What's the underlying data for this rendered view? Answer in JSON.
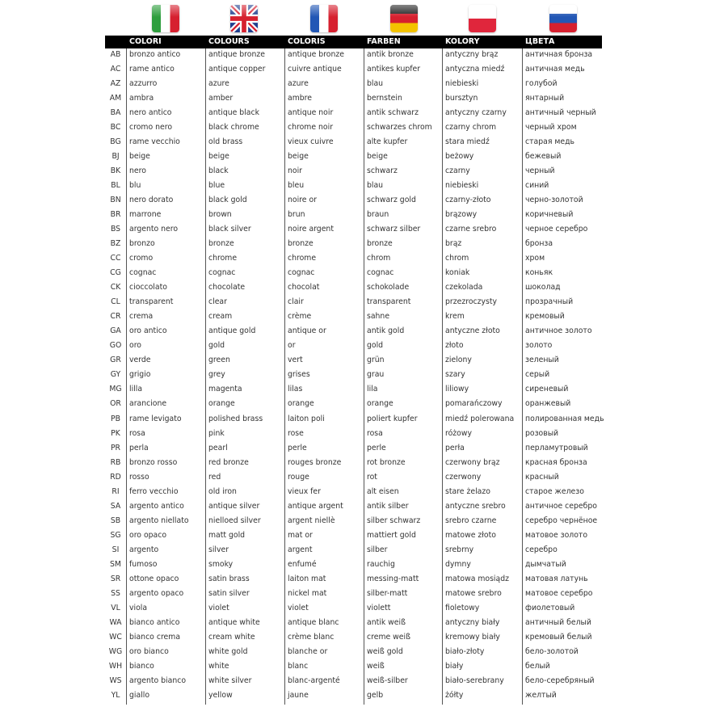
{
  "flags": [
    {
      "name": "italy-flag-icon",
      "colors": [
        "#2e9e3e",
        "#ffffff",
        "#d6202f"
      ]
    },
    {
      "name": "uk-flag-icon",
      "colors": [
        "#1f3f8f",
        "#ffffff",
        "#d6202f"
      ]
    },
    {
      "name": "france-flag-icon",
      "colors": [
        "#2257b5",
        "#ffffff",
        "#d6202f"
      ]
    },
    {
      "name": "germany-flag-icon",
      "colors": [
        "#222222",
        "#d6202f",
        "#f3c300"
      ]
    },
    {
      "name": "poland-flag-icon",
      "colors": [
        "#ffffff",
        "#e0263c"
      ]
    },
    {
      "name": "russia-flag-icon",
      "colors": [
        "#ffffff",
        "#2257b5",
        "#d6202f"
      ]
    }
  ],
  "headers": [
    "COLORI",
    "COLOURS",
    "COLORIS",
    "FARBEN",
    "KOLORY",
    "ЦВЕТА"
  ],
  "rows": [
    [
      "AB",
      "bronzo antico",
      "antique bronze",
      "antique bronze",
      "antik bronze",
      "antyczny brąz",
      "античная бронза"
    ],
    [
      "AC",
      "rame antico",
      "antique copper",
      "cuivre antique",
      "antikes kupfer",
      "antyczna miedź",
      "античная медь"
    ],
    [
      "AZ",
      "azzurro",
      "azure",
      "azure",
      "blau",
      "niebieski",
      "голубой"
    ],
    [
      "AM",
      "ambra",
      "amber",
      "ambre",
      "bernstein",
      "bursztyn",
      "янтарный"
    ],
    [
      "BA",
      "nero antico",
      "antique black",
      "antique noir",
      "antik schwarz",
      "antyczny czarny",
      "античный черный"
    ],
    [
      "BC",
      "cromo nero",
      "black chrome",
      "chrome noir",
      "schwarzes chrom",
      "czarny chrom",
      "черный хром"
    ],
    [
      "BG",
      "rame vecchio",
      "old brass",
      "vieux cuivre",
      "alte kupfer",
      "stara miedź",
      "старая медь"
    ],
    [
      "BJ",
      "beige",
      "beige",
      "beige",
      "beige",
      "beżowy",
      "бежевый"
    ],
    [
      "BK",
      "nero",
      "black",
      "noir",
      "schwarz",
      "czarny",
      "черный"
    ],
    [
      "BL",
      "blu",
      "blue",
      "bleu",
      "blau",
      "niebieski",
      "синий"
    ],
    [
      "BN",
      "nero dorato",
      "black gold",
      "noire or",
      "schwarz gold",
      "czarny-złoto",
      "черно-золотой"
    ],
    [
      "BR",
      "marrone",
      "brown",
      "brun",
      "braun",
      "brązowy",
      "коричневый"
    ],
    [
      "BS",
      "argento nero",
      "black silver",
      "noire argent",
      "schwarz silber",
      "czarne srebro",
      "черное серебро"
    ],
    [
      "BZ",
      "bronzo",
      "bronze",
      "bronze",
      "bronze",
      "brąz",
      "бронза"
    ],
    [
      "CC",
      "cromo",
      "chrome",
      "chrome",
      "chrom",
      "chrom",
      "хром"
    ],
    [
      "CG",
      "cognac",
      "cognac",
      "cognac",
      "cognac",
      "koniak",
      "коньяк"
    ],
    [
      "CK",
      "cioccolato",
      "chocolate",
      "chocolat",
      "schokolade",
      "czekolada",
      "шоколад"
    ],
    [
      "CL",
      "transparent",
      "clear",
      "clair",
      "transparent",
      "przezroczysty",
      "прозрачный"
    ],
    [
      "CR",
      "crema",
      "cream",
      "crème",
      "sahne",
      "krem",
      "кремовый"
    ],
    [
      "GA",
      "oro antico",
      "antique gold",
      "antique or",
      "antik gold",
      "antyczne złoto",
      "античное золото"
    ],
    [
      "GO",
      "oro",
      "gold",
      "or",
      "gold",
      "złoto",
      "золото"
    ],
    [
      "GR",
      "verde",
      "green",
      "vert",
      "grün",
      "zielony",
      "зеленый"
    ],
    [
      "GY",
      "grigio",
      "grey",
      "grises",
      "grau",
      "szary",
      "серый"
    ],
    [
      "MG",
      "lilla",
      "magenta",
      "lilas",
      "lila",
      "liliowy",
      "сиреневый"
    ],
    [
      "OR",
      "arancione",
      "orange",
      "orange",
      "orange",
      "pomarańczowy",
      "оранжевый"
    ],
    [
      "PB",
      "rame levigato",
      "polished brass",
      "laiton poli",
      "poliert kupfer",
      "miedź polerowana",
      "полированная медь"
    ],
    [
      "PK",
      "rosa",
      "pink",
      "rose",
      "rosa",
      "różowy",
      "розовый"
    ],
    [
      "PR",
      "perla",
      "pearl",
      "perle",
      "perle",
      "perła",
      "перламутровый"
    ],
    [
      "RB",
      "bronzo rosso",
      "red bronze",
      "rouges bronze",
      "rot bronze",
      "czerwony brąz",
      "красная бронза"
    ],
    [
      "RD",
      "rosso",
      "red",
      "rouge",
      "rot",
      "czerwony",
      "красный"
    ],
    [
      "RI",
      "ferro vecchio",
      "old iron",
      "vieux fer",
      "alt eisen",
      "stare żelazo",
      "старое железо"
    ],
    [
      "SA",
      "argento antico",
      "antique silver",
      "antique argent",
      "antik silber",
      "antyczne srebro",
      "античное серебро"
    ],
    [
      "SB",
      "argento niellato",
      "nielloed silver",
      "argent niellè",
      "silber schwarz",
      "srebro czarne",
      "серебро чернёное"
    ],
    [
      "SG",
      "oro opaco",
      "matt gold",
      "mat or",
      "mattiert gold",
      "matowe złoto",
      "матовое золото"
    ],
    [
      "SI",
      "argento",
      "silver",
      "argent",
      "silber",
      "srebrny",
      "серебро"
    ],
    [
      "SM",
      "fumoso",
      "smoky",
      "enfumé",
      "rauchig",
      "dymny",
      "дымчатый"
    ],
    [
      "SR",
      "ottone opaco",
      "satin brass",
      "laiton mat",
      "messing-matt",
      "matowa mosiądz",
      "матовая латунь"
    ],
    [
      "SS",
      "argento opaco",
      "satin silver",
      "nickel mat",
      "silber-matt",
      "matowe srebro",
      "матовое серебро"
    ],
    [
      "VL",
      "viola",
      "violet",
      "violet",
      "violett",
      "fioletowy",
      "фиолетовый"
    ],
    [
      "WA",
      "bianco antico",
      "antique white",
      "antique blanc",
      "antik weiß",
      "antyczny biały",
      "античный белый"
    ],
    [
      "WC",
      "bianco crema",
      "cream white",
      "crème blanc",
      "creme weiß",
      "kremowy biały",
      "кремовый белый"
    ],
    [
      "WG",
      "oro bianco",
      "white gold",
      "blanche or",
      "weiß gold",
      "biało-złoty",
      "бело-золотой"
    ],
    [
      "WH",
      "bianco",
      "white",
      "blanc",
      "weiß",
      "biały",
      "белый"
    ],
    [
      "WS",
      "argento bianco",
      "white silver",
      "blanc-argenté",
      "weiß-silber",
      "biało-serebrany",
      "бело-серебряный"
    ],
    [
      "YL",
      "giallo",
      "yellow",
      "jaune",
      "gelb",
      "żółty",
      "желтый"
    ]
  ]
}
